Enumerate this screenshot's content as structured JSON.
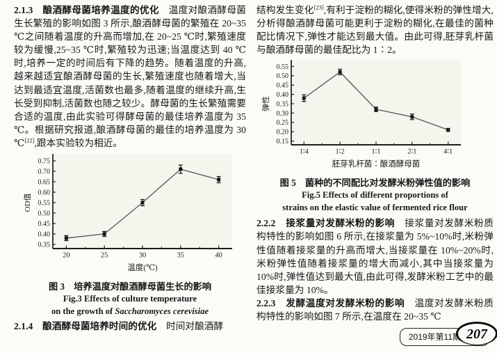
{
  "footer": {
    "issue": "2019年第11期",
    "page_number": "207"
  },
  "left_column": {
    "section_2_1_3": {
      "heading": "2.1.3　酿酒酵母菌培养温度的优化",
      "body_before_ref": "　温度对酿酒酵母菌生长繁殖的影响如图 3 所示,酿酒酵母菌的繁殖在 20~35 ℃之间随着温度的升高而增加,在 20~25 ℃时,繁殖速度较为缓慢,25~35 ℃时,繁殖较为迅速;当温度达到 40 ℃时,培养一定的时间后有下降的趋势。随着温度的升高,越来越适宜酿酒酵母菌的生长,繁殖速度也随着增大,当达到最适宜温度,活菌数也最多,随着温度的继续升高,生长受到抑制,活菌数也随之较少。酵母菌的生长繁殖需要合适的温度,由此实验可得酵母菌的最佳培养温度为 35 ℃。根据研究报道,酿酒酵母菌的最佳的培养温度为 30 ℃",
      "reference": "[22]",
      "body_after_ref": ",跟本实验较为相近。"
    },
    "fig3_caption_cn": "图 3　培养温度对酿酒酵母菌生长的影响",
    "fig3_caption_en_line1": "Fig.3  Effects of culture temperature",
    "fig3_caption_en_line2_prefix": "on the growth of ",
    "fig3_caption_en_line2_species": "Saccharomyces cerevisiae",
    "section_2_1_4": {
      "heading": "2.1.4　酿酒酵母菌培养时间的优化",
      "body": "　时间对酿酒酵"
    }
  },
  "right_column": {
    "para_continuation": {
      "body_before_ref": "结构发生变化",
      "reference": "[23]",
      "body_after_ref": ",有利于淀粉的糊化,使得米粉的弹性增大,分析得酿酒酵母菌可能更利于淀粉的糊化,在最佳的菌种配比情况下,弹性才能达到最大值。由此可得,胚芽乳杆菌与酿酒酵母菌的最佳配比为 1∶2。"
    },
    "fig5_caption_cn": "图 5　菌种的不同配比对发酵米粉弹性值的影响",
    "fig5_caption_en_line1": "Fig.5  Effects of different proportions of",
    "fig5_caption_en_line2": "strains on the elastic value of fermented rice flour",
    "section_2_2_2": {
      "heading": "2.2.2　接浆量对发酵米粉的影响",
      "body": "　接浆量对发酵米粉质构特性的影响如图 6 所示,在接浆量为 5%~10%时,米粉弹性值随着接浆量的升高而增大,当接浆量在 10%~20%时,米粉弹性值随着接浆量的增大而减小,其中当接浆量为 10%时,弹性值达到最大值,由此可得,发酵米粉工艺中的最佳接浆量为 10%。"
    },
    "section_2_2_3": {
      "heading": "2.2.3　发酵温度对发酵米粉的影响",
      "body": "　温度对发酵米粉质构特性的影响如图 7 所示,在温度在 20~35 ℃"
    }
  },
  "chart_data": [
    {
      "id": "fig3",
      "type": "line",
      "title": "图 3 培养温度对酿酒酵母菌生长的影响 / Fig.3 Effects of culture temperature on the growth of Saccharomyces cerevisiae",
      "categories": [
        "20",
        "25",
        "30",
        "35",
        "40"
      ],
      "values": [
        0.38,
        0.4,
        0.55,
        0.71,
        0.66
      ],
      "errors": [
        0.012,
        0.012,
        0.015,
        0.02,
        0.015
      ],
      "xlabel": "温度(℃)",
      "ylabel": "OD值",
      "ylim": [
        0.33,
        0.77
      ],
      "yticks": [
        0.35,
        0.4,
        0.45,
        0.5,
        0.55,
        0.6,
        0.65,
        0.7,
        0.75
      ],
      "grid": false,
      "legend": null,
      "marker": "square",
      "colors": {
        "axis": "#1c1c1c",
        "line": "#5c5c5c",
        "marker": "#141414",
        "plot_bg": "#f5f4ed",
        "text": "#1a1a1a"
      }
    },
    {
      "id": "fig5",
      "type": "line",
      "title": "图 5 菌种的不同配比对发酵米粉弹性值的影响 / Fig.5 Effects of different proportions of strains on the elastic value of fermented rice flour",
      "categories": [
        "1∶4",
        "1∶2",
        "1∶1",
        "2∶1",
        "4∶1"
      ],
      "values": [
        0.38,
        0.52,
        0.32,
        0.28,
        0.21
      ],
      "errors": [
        0.018,
        0.015,
        0.012,
        0.015,
        0.008
      ],
      "xlabel": "胚芽乳杆菌∶酿酒酵母菌",
      "ylabel": "弹性",
      "ylim": [
        0.13,
        0.57
      ],
      "yticks": [
        0.15,
        0.2,
        0.25,
        0.3,
        0.35,
        0.4,
        0.45,
        0.5,
        0.55
      ],
      "grid": false,
      "legend": null,
      "marker": "square",
      "colors": {
        "axis": "#1c1c1c",
        "line": "#5c5c5c",
        "marker": "#141414",
        "plot_bg": "#f5f4ed",
        "text": "#1a1a1a"
      }
    }
  ]
}
